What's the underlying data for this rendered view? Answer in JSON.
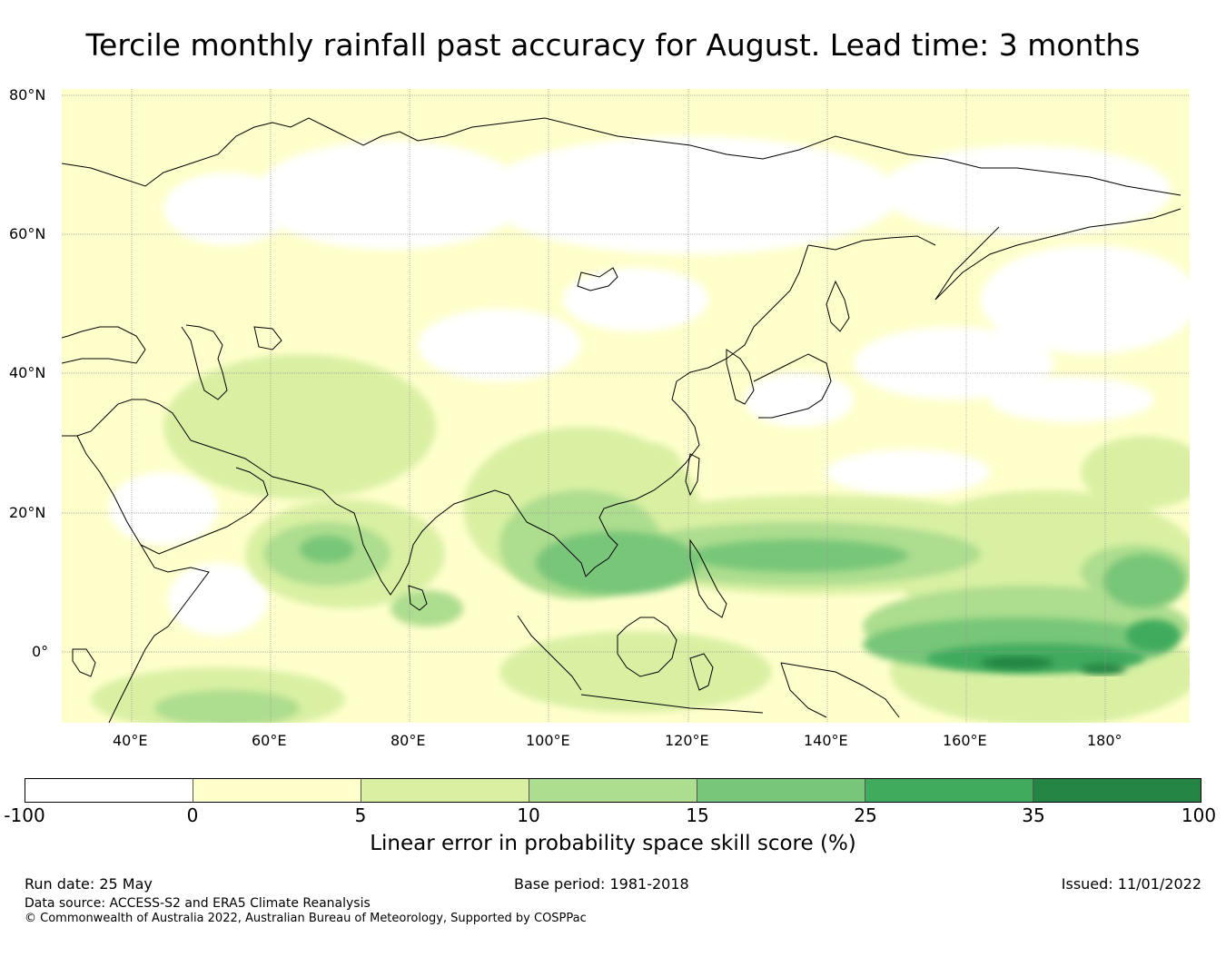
{
  "title": "Tercile monthly rainfall past accuracy for August. Lead time: 3 months",
  "map": {
    "lat_labels": [
      "80°N",
      "60°N",
      "40°N",
      "20°N",
      "0°"
    ],
    "lon_labels": [
      "40°E",
      "60°E",
      "80°E",
      "100°E",
      "120°E",
      "140°E",
      "160°E",
      "180°"
    ],
    "colors": {
      "none": "#ffffff",
      "l0": "#ffffcc",
      "l1": "#d9f0a3",
      "l2": "#addd8e",
      "l3": "#78c679",
      "l4": "#41ab5d",
      "l5": "#238443"
    }
  },
  "colorbar": {
    "ticks": [
      "-100",
      "0",
      "5",
      "10",
      "15",
      "25",
      "35",
      "100"
    ],
    "colors": [
      "#ffffff",
      "#ffffcc",
      "#d9f0a3",
      "#addd8e",
      "#78c679",
      "#41ab5d",
      "#238443"
    ],
    "label": "Linear error in probability space skill score (%)"
  },
  "footer": {
    "run_date": "Run date: 25 May",
    "base_period": "Base period: 1981-2018",
    "issued": "Issued: 11/01/2022",
    "data_source": "Data source: ACCESS-S2 and ERA5 Climate Reanalysis",
    "copyright": "© Commonwealth of Australia 2022, Australian Bureau of Meteorology, Supported by COSPPac"
  }
}
